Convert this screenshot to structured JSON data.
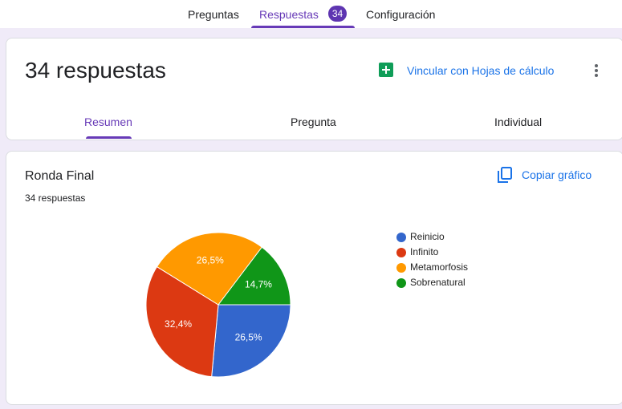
{
  "tabs": [
    "Preguntas",
    "Respuestas",
    "Configuración"
  ],
  "badge": "34",
  "summary": {
    "title": "34 respuestas",
    "link": "Vincular con Hojas de cálculo"
  },
  "subtabs": [
    "Resumen",
    "Pregunta",
    "Individual"
  ],
  "question": {
    "title": "Ronda Final",
    "responses": "34 respuestas",
    "copy": "Copiar gráfico"
  },
  "chart_data": {
    "type": "pie",
    "categories": [
      "Reinicio",
      "Infinito",
      "Metamorfosis",
      "Sobrenatural"
    ],
    "values": [
      26.5,
      32.4,
      26.5,
      14.7
    ],
    "value_labels": [
      "26,5%",
      "32,4%",
      "26,5%",
      "14,7%"
    ],
    "colors": [
      "#3366cc",
      "#dc3912",
      "#ff9900",
      "#109618"
    ]
  }
}
